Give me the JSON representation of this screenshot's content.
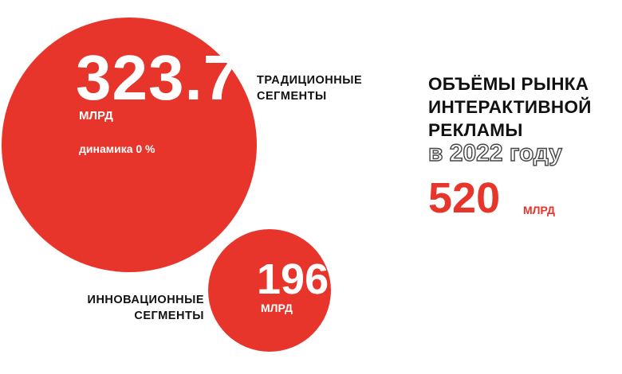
{
  "chart_data": {
    "type": "bubble",
    "title": "ОБЪЁМЫ РЫНКА ИНТЕРАКТИВНОЙ РЕКЛАМЫ",
    "subtitle": "в 2022 году",
    "total": {
      "value": "520",
      "unit": "МЛРД"
    },
    "series": [
      {
        "name": "ТРАДИЦИОННЫЕ СЕГМЕНТЫ",
        "label_lines": [
          "ТРАДИЦИОННЫЕ",
          "СЕГМЕНТЫ"
        ],
        "value": 323.7,
        "value_text": "323.7",
        "unit": "МЛРД",
        "note": "динамика 0 %"
      },
      {
        "name": "ИННОВАЦИОННЫЕ СЕГМЕНТЫ",
        "label_lines": [
          "ИННОВАЦИОННЫЕ",
          "СЕГМЕНТЫ"
        ],
        "value": 196,
        "value_text": "196",
        "unit": "МЛРД"
      }
    ]
  },
  "headline_lines": [
    "ОБЪЁМЫ РЫНКА",
    "ИНТЕРАКТИВНОЙ",
    "РЕКЛАМЫ"
  ],
  "colors": {
    "accent": "#e8352b",
    "text": "#111111",
    "background": "#ffffff"
  }
}
